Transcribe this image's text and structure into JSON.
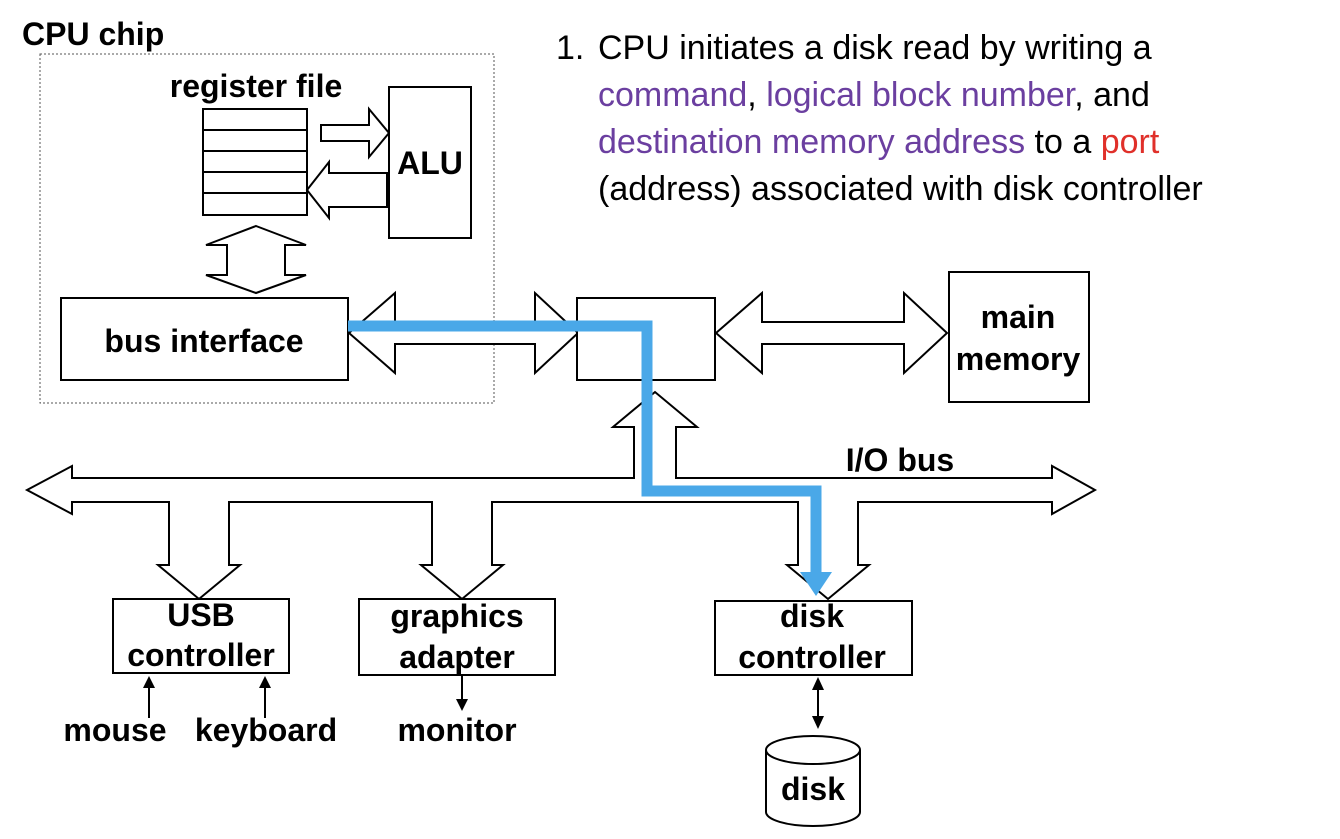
{
  "labels": {
    "cpu_chip": "CPU chip",
    "register_file": "register file",
    "alu": "ALU",
    "bus_interface": "bus interface",
    "main_memory_line1": "main",
    "main_memory_line2": "memory",
    "io_bus": "I/O bus",
    "usb_line1": "USB",
    "usb_line2": "controller",
    "graphics_line1": "graphics",
    "graphics_line2": "adapter",
    "disk_ctrl_line1": "disk",
    "disk_ctrl_line2": "controller",
    "mouse": "mouse",
    "keyboard": "keyboard",
    "monitor": "monitor",
    "disk": "disk"
  },
  "caption": {
    "number": "1.",
    "line1": "CPU initiates a disk read by writing a",
    "l2_part1": "command",
    "l2_part2": ", ",
    "l2_part3": "logical block number",
    "l2_part4": ", and",
    "l3_part1": "destination memory address",
    "l3_part2": " to a ",
    "l3_part3": "port",
    "line4": "(address) associated with disk controller"
  },
  "colors": {
    "highlight_text": "#6b3fa0",
    "port_text": "#e0302a",
    "data_path": "#4aa8e8"
  }
}
